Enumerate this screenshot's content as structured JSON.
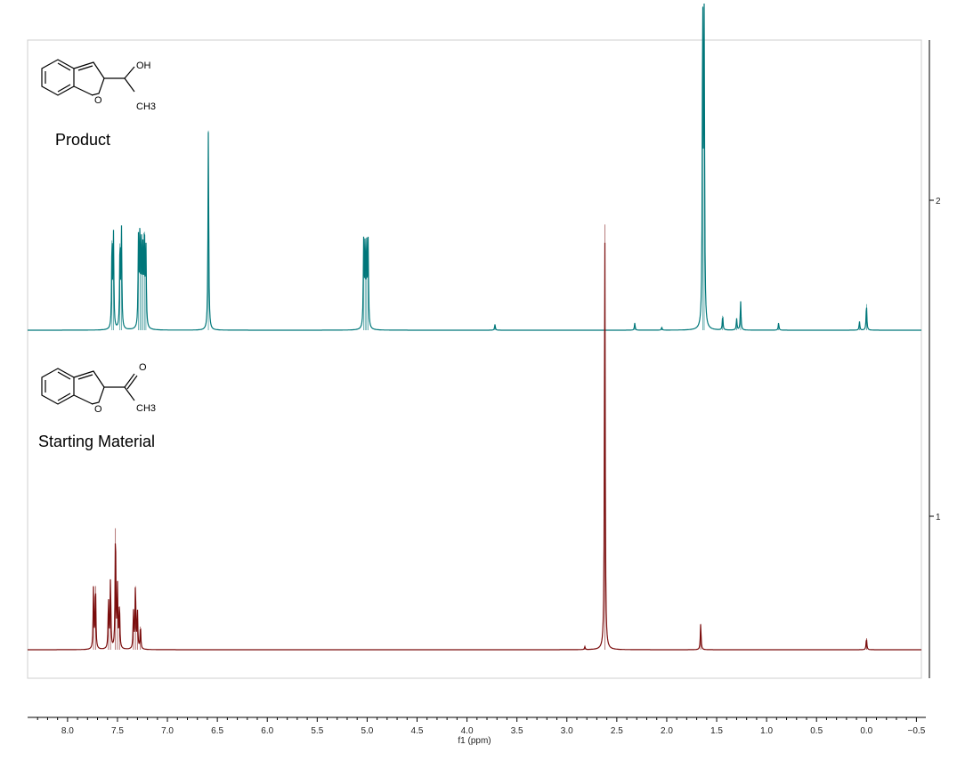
{
  "chart_data": {
    "type": "line",
    "title": "",
    "xlabel": "f1 (ppm)",
    "ylabel": "",
    "xlim": [
      8.4,
      -0.55
    ],
    "x_reversed": true,
    "x_ticks": [
      8.0,
      7.5,
      7.0,
      6.5,
      6.0,
      5.5,
      5.0,
      4.5,
      4.0,
      3.5,
      3.0,
      2.5,
      2.0,
      1.5,
      1.0,
      0.5,
      0.0,
      -0.5
    ],
    "x_tick_labels": [
      "8.0",
      "7.5",
      "7.0",
      "6.5",
      "6.0",
      "5.5",
      "5.0",
      "4.5",
      "4.0",
      "3.5",
      "3.0",
      "2.5",
      "2.0",
      "1.5",
      "1.0",
      "0.5",
      "0.0",
      "−0.5"
    ],
    "y_ticks": [
      {
        "value": 2,
        "label": "2"
      },
      {
        "value": 1,
        "label": "1"
      }
    ],
    "grid": false,
    "series": [
      {
        "label": "Product",
        "structure": {
          "substituent_top": "OH",
          "substituent_bottom": "CH3",
          "ring_atom": "O"
        },
        "color": "#00777a",
        "baseline_ratio": 0.0,
        "peaks": [
          {
            "ppm": 7.555,
            "height": 0.31
          },
          {
            "ppm": 7.54,
            "height": 0.32
          },
          {
            "ppm": 7.475,
            "height": 0.3
          },
          {
            "ppm": 7.46,
            "height": 0.34
          },
          {
            "ppm": 7.29,
            "height": 0.3
          },
          {
            "ppm": 7.275,
            "height": 0.34
          },
          {
            "ppm": 7.26,
            "height": 0.28
          },
          {
            "ppm": 7.245,
            "height": 0.25
          },
          {
            "ppm": 7.23,
            "height": 0.34
          },
          {
            "ppm": 7.215,
            "height": 0.27
          },
          {
            "ppm": 6.59,
            "height": 0.69
          },
          {
            "ppm": 5.035,
            "height": 0.29
          },
          {
            "ppm": 5.02,
            "height": 0.29
          },
          {
            "ppm": 5.005,
            "height": 0.29
          },
          {
            "ppm": 4.99,
            "height": 0.29
          },
          {
            "ppm": 3.72,
            "height": 0.02
          },
          {
            "ppm": 2.32,
            "height": 0.025
          },
          {
            "ppm": 2.05,
            "height": 0.01
          },
          {
            "ppm": 1.64,
            "height": 1.12
          },
          {
            "ppm": 1.625,
            "height": 1.12
          },
          {
            "ppm": 1.44,
            "height": 0.05
          },
          {
            "ppm": 1.3,
            "height": 0.04
          },
          {
            "ppm": 1.26,
            "height": 0.1
          },
          {
            "ppm": 0.88,
            "height": 0.025
          },
          {
            "ppm": 0.07,
            "height": 0.03
          },
          {
            "ppm": 0.0,
            "height": 0.09
          }
        ]
      },
      {
        "label": "Starting Material",
        "structure": {
          "substituent_top": "O",
          "substituent_bottom": "CH3",
          "ring_atom": "O"
        },
        "color": "#7a0c0c",
        "peaks": [
          {
            "ppm": 7.74,
            "height": 0.21
          },
          {
            "ppm": 7.72,
            "height": 0.22
          },
          {
            "ppm": 7.59,
            "height": 0.17
          },
          {
            "ppm": 7.57,
            "height": 0.24
          },
          {
            "ppm": 7.52,
            "height": 0.42
          },
          {
            "ppm": 7.5,
            "height": 0.21
          },
          {
            "ppm": 7.48,
            "height": 0.15
          },
          {
            "ppm": 7.34,
            "height": 0.13
          },
          {
            "ppm": 7.32,
            "height": 0.22
          },
          {
            "ppm": 7.3,
            "height": 0.13
          },
          {
            "ppm": 7.27,
            "height": 0.08
          },
          {
            "ppm": 2.62,
            "height": 1.47
          },
          {
            "ppm": 2.82,
            "height": 0.01
          },
          {
            "ppm": 1.66,
            "height": 0.09
          },
          {
            "ppm": 0.0,
            "height": 0.04
          }
        ]
      }
    ]
  }
}
